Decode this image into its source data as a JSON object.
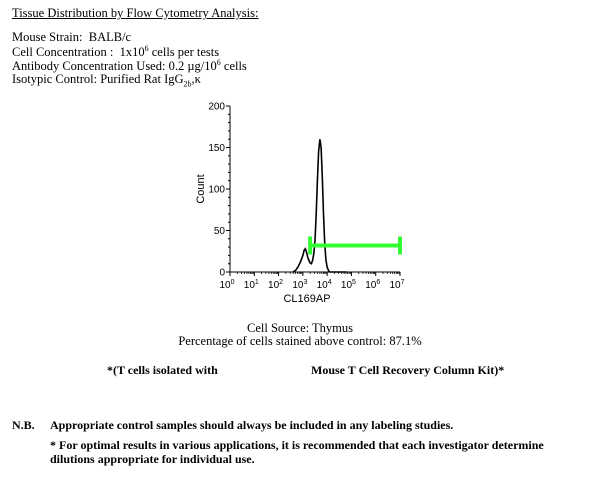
{
  "header": {
    "title": "Tissue Distribution by Flow Cytometry Analysis:",
    "strain_label": "Mouse Strain:",
    "strain_value": "BALB/c",
    "cell_conc_label": "Cell Concentration :",
    "cell_conc_base": "1x10",
    "cell_conc_exp": "6",
    "cell_conc_unit": "cells per tests",
    "antibody_label": "Antibody Concentration Used:",
    "antibody_value": "0.2 µg/10",
    "antibody_exp": "6",
    "antibody_unit": "cells",
    "isotype_label": "Isotypic Control:",
    "isotype_value": "Purified Rat IgG",
    "isotype_sub": "2b",
    "isotype_suffix": ",κ"
  },
  "chart_data": {
    "type": "line",
    "ylabel": "Count",
    "xlabel": "CL169AP",
    "ylim": [
      0,
      200
    ],
    "yticks": [
      "0",
      "50",
      "100",
      "150",
      "200"
    ],
    "xscale": "log",
    "xtick_base": "10",
    "xtick_exponents": [
      "0",
      "1",
      "2",
      "3",
      "4",
      "5",
      "6",
      "7"
    ],
    "series": [
      {
        "x": [
          2.6,
          2.7,
          2.8,
          2.9,
          3.0,
          3.05,
          3.1,
          3.15,
          3.2,
          3.25,
          3.3,
          3.35,
          3.4,
          3.45,
          3.5,
          3.55,
          3.6,
          3.65,
          3.7,
          3.75,
          3.8,
          3.85,
          3.9,
          3.95,
          4.0,
          4.05,
          4.1,
          4.15,
          4.2,
          4.25,
          4.3,
          4.35,
          4.4,
          4.5,
          4.6,
          4.8
        ],
        "y": [
          0,
          2,
          6,
          12,
          20,
          26,
          28,
          24,
          18,
          14,
          11,
          10,
          14,
          22,
          38,
          70,
          110,
          145,
          160,
          150,
          115,
          70,
          35,
          15,
          6,
          2,
          0,
          0,
          0,
          0,
          0,
          0,
          0,
          0,
          0,
          0
        ]
      }
    ],
    "gate": {
      "x_start": 3.3,
      "x_end": 7.0,
      "y": 32
    },
    "gate_color": "#33ff33"
  },
  "results": {
    "source": "Cell Source: Thymus",
    "percentage": "Percentage of cells stained above control: 87.1%"
  },
  "note": {
    "left": "*(T cells isolated with",
    "right": "Mouse T Cell Recovery Column Kit)*"
  },
  "nb": {
    "label": "N.B.",
    "line1": "Appropriate control samples should always be included in any labeling studies.",
    "line2a": "* For optimal results in various applications, it is recommended that each investigator determine",
    "line2b": "dilutions appropriate for individual use."
  }
}
